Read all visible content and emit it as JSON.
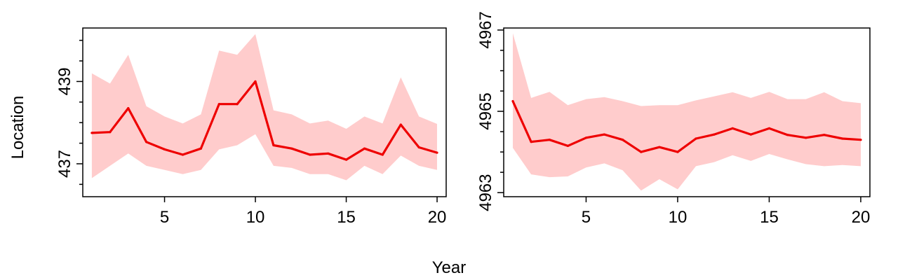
{
  "figure": {
    "xlabel": "Year",
    "ylabel": "Location"
  },
  "colors": {
    "line": "#ee0000",
    "band": "#ffcccc",
    "frame": "#000000"
  },
  "chart_data": [
    {
      "type": "line",
      "panel": "left",
      "x": [
        1,
        2,
        3,
        4,
        5,
        6,
        7,
        8,
        9,
        10,
        11,
        12,
        13,
        14,
        15,
        16,
        17,
        18,
        19,
        20
      ],
      "series": [
        {
          "values": [
            437.75,
            437.77,
            438.35,
            437.53,
            437.35,
            437.22,
            437.37,
            438.45,
            438.45,
            439.0,
            437.45,
            437.37,
            437.22,
            437.25,
            437.1,
            437.37,
            437.22,
            437.95,
            437.4,
            437.27
          ],
          "lower": [
            436.65,
            436.95,
            437.25,
            436.95,
            436.85,
            436.75,
            436.85,
            437.35,
            437.45,
            437.72,
            436.95,
            436.9,
            436.75,
            436.75,
            436.6,
            436.95,
            436.75,
            437.2,
            436.95,
            436.85
          ],
          "upper": [
            439.2,
            438.95,
            439.65,
            438.4,
            438.15,
            437.98,
            438.2,
            439.75,
            439.65,
            440.15,
            438.3,
            438.2,
            437.98,
            438.05,
            437.85,
            438.15,
            437.98,
            439.1,
            438.15,
            437.97
          ]
        }
      ],
      "xlim": [
        0.5,
        20.5
      ],
      "ylim": [
        436.2,
        440.3
      ],
      "xticks": [
        5,
        10,
        15,
        20
      ],
      "yticks": [
        437,
        439
      ],
      "yticks_minor": [
        436.5,
        437.5,
        438,
        438.5,
        439.5,
        440
      ],
      "xtick_labels": [
        "5",
        "10",
        "15",
        "20"
      ],
      "ytick_labels": [
        "437",
        "439"
      ]
    },
    {
      "type": "line",
      "panel": "right",
      "x": [
        1,
        2,
        3,
        4,
        5,
        6,
        7,
        8,
        9,
        10,
        11,
        12,
        13,
        14,
        15,
        16,
        17,
        18,
        19,
        20
      ],
      "series": [
        {
          "values": [
            4965.25,
            4964.25,
            4964.3,
            4964.15,
            4964.35,
            4964.43,
            4964.3,
            4964.0,
            4964.12,
            4964.0,
            4964.33,
            4964.43,
            4964.58,
            4964.43,
            4964.58,
            4964.42,
            4964.35,
            4964.42,
            4964.33,
            4964.3
          ],
          "lower": [
            4964.1,
            4963.45,
            4963.38,
            4963.4,
            4963.62,
            4963.72,
            4963.55,
            4963.05,
            4963.33,
            4963.08,
            4963.65,
            4963.75,
            4963.92,
            4963.78,
            4963.95,
            4963.82,
            4963.7,
            4963.65,
            4963.68,
            4963.65
          ],
          "upper": [
            4966.92,
            4965.33,
            4965.48,
            4965.15,
            4965.3,
            4965.35,
            4965.25,
            4965.13,
            4965.15,
            4965.15,
            4965.27,
            4965.37,
            4965.47,
            4965.33,
            4965.48,
            4965.3,
            4965.3,
            4965.47,
            4965.25,
            4965.2
          ]
        }
      ],
      "xlim": [
        0.5,
        20.5
      ],
      "ylim": [
        4962.9,
        4967.05
      ],
      "xticks": [
        5,
        10,
        15,
        20
      ],
      "yticks": [
        4963,
        4965,
        4967
      ],
      "yticks_minor": [
        4963.5,
        4964,
        4964.5,
        4965.5,
        4966,
        4966.5
      ],
      "xtick_labels": [
        "5",
        "10",
        "15",
        "20"
      ],
      "ytick_labels": [
        "4963",
        "4965",
        "4967"
      ]
    }
  ]
}
